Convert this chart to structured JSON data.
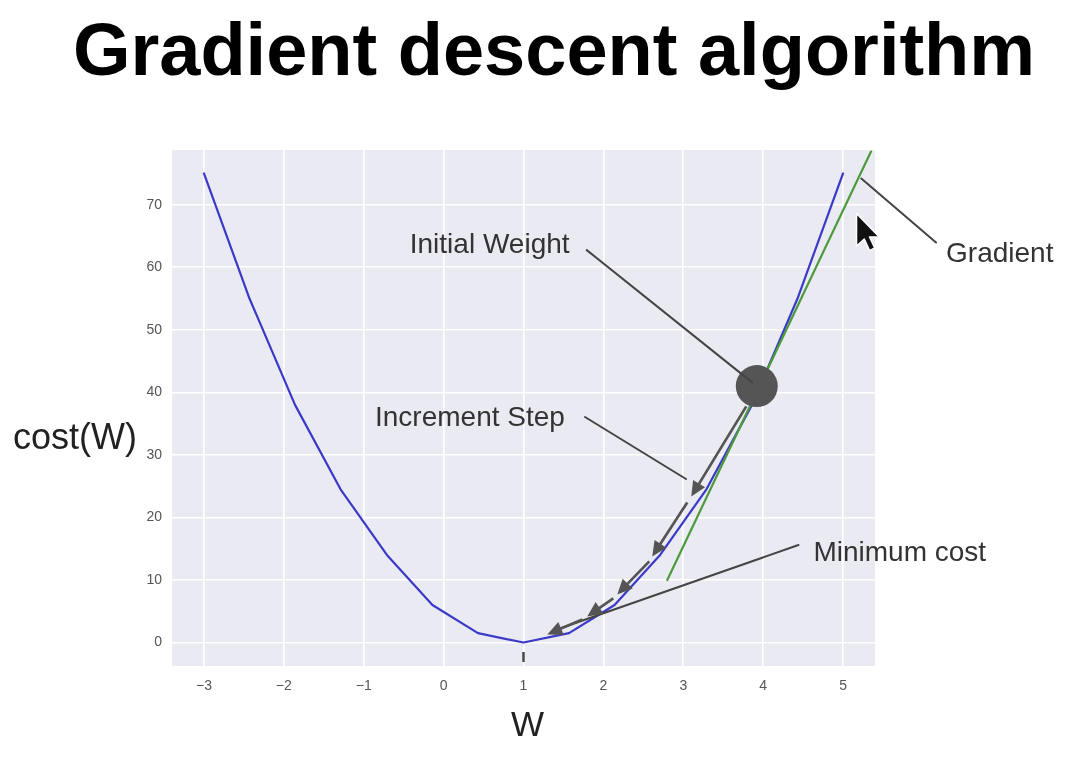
{
  "chart_data": {
    "type": "line",
    "title": "Gradient descent algorithm",
    "xlabel": "W",
    "ylabel": "cost(W)",
    "series": [
      {
        "color": "#3a3ac8",
        "x": [
          -3,
          -2.43,
          -1.86,
          -1.29,
          -0.71,
          -0.14,
          0.43,
          1,
          1.57,
          2.14,
          2.71,
          3.29,
          3.86,
          4.43,
          5
        ],
        "values": [
          75,
          55,
          38,
          24.5,
          14,
          6,
          1.5,
          0,
          1.5,
          6,
          14,
          24.5,
          38,
          55,
          75
        ]
      },
      {
        "color": "#4c9a3c",
        "x": [
          2.8,
          5.35
        ],
        "values": [
          10,
          78.5
        ]
      },
      {
        "type": "scatter",
        "color": "#555555",
        "marker": "circle",
        "x": [
          3.92
        ],
        "values": [
          41
        ]
      }
    ],
    "xlim": [
      -3.4,
      5.4
    ],
    "ylim": [
      -3.75,
      78.75
    ],
    "xticks": [
      {
        "value": -3,
        "label": "−3"
      },
      {
        "value": -2,
        "label": "−2"
      },
      {
        "value": -1,
        "label": "−1"
      },
      0,
      1,
      2,
      3,
      4,
      5
    ],
    "yticks": [
      0,
      10,
      20,
      30,
      40,
      50,
      60,
      70
    ],
    "grid": true,
    "annotations": [
      {
        "text": "Initial Weight",
        "x": 3.92,
        "y": 41
      },
      "Increment Step",
      {
        "text": "Minimum cost",
        "x": 1.4,
        "y": 2
      },
      {
        "text": "Gradient",
        "x": 5.2,
        "y": 74.5
      }
    ]
  }
}
